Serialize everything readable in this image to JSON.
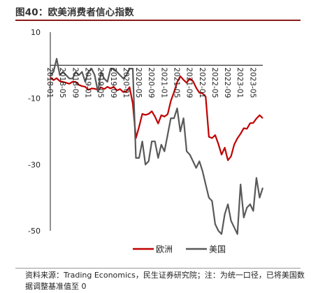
{
  "header": {
    "title": "图40：欧美消费者信心指数"
  },
  "footer": {
    "source": "资料来源：Trading Economics，民生证券研究院；注：为统一口径，已将美国数据调整基准值至 0"
  },
  "chart_data": {
    "type": "line",
    "title": "图40：欧美消费者信心指数",
    "xlabel": "",
    "ylabel": "",
    "ylim": [
      -50,
      10
    ],
    "yticks": [
      10,
      -10,
      -30,
      -50
    ],
    "xlim": [
      "2018-01",
      "2023-08"
    ],
    "xticks": [
      "2018-01",
      "2018-05",
      "2018-09",
      "2019-01",
      "2019-05",
      "2019-09",
      "2020-01",
      "2020-05",
      "2020-09",
      "2021-01",
      "2021-05",
      "2021-09",
      "2022-01",
      "2022-05",
      "2022-09",
      "2023-01",
      "2023-05"
    ],
    "grid": false,
    "legend": "bottom",
    "series": [
      {
        "name": "欧洲",
        "color": "#c00000",
        "x": [
          "2018-01",
          "2018-02",
          "2018-03",
          "2018-04",
          "2018-05",
          "2018-06",
          "2018-07",
          "2018-08",
          "2018-09",
          "2018-10",
          "2018-11",
          "2018-12",
          "2019-01",
          "2019-02",
          "2019-03",
          "2019-04",
          "2019-05",
          "2019-06",
          "2019-07",
          "2019-08",
          "2019-09",
          "2019-10",
          "2019-11",
          "2019-12",
          "2020-01",
          "2020-02",
          "2020-03",
          "2020-04",
          "2020-05",
          "2020-06",
          "2020-07",
          "2020-08",
          "2020-09",
          "2020-10",
          "2020-11",
          "2020-12",
          "2021-01",
          "2021-02",
          "2021-03",
          "2021-04",
          "2021-05",
          "2021-06",
          "2021-07",
          "2021-08",
          "2021-09",
          "2021-10",
          "2021-11",
          "2021-12",
          "2022-01",
          "2022-02",
          "2022-03",
          "2022-04",
          "2022-05",
          "2022-06",
          "2022-07",
          "2022-08",
          "2022-09",
          "2022-10",
          "2022-11",
          "2022-12",
          "2023-01",
          "2023-02",
          "2023-03",
          "2023-04",
          "2023-05",
          "2023-06",
          "2023-07",
          "2023-08"
        ],
        "values": [
          -3.6,
          -4.5,
          -3.9,
          -4.8,
          -5.0,
          -5.3,
          -5.6,
          -5.0,
          -5.0,
          -5.9,
          -6.3,
          -6.5,
          -7.4,
          -7.0,
          -7.1,
          -7.4,
          -6.7,
          -7.2,
          -6.5,
          -7.0,
          -6.5,
          -7.6,
          -7.2,
          -8.1,
          -7.9,
          -6.6,
          -11.6,
          -22.0,
          -18.6,
          -14.7,
          -15.0,
          -14.7,
          -13.9,
          -15.5,
          -17.6,
          -15.1,
          -15.5,
          -14.8,
          -10.8,
          -8.1,
          -5.1,
          -3.3,
          -4.4,
          -5.3,
          -4.0,
          -4.8,
          -6.8,
          -8.3,
          -8.5,
          -9.5,
          -21.6,
          -22.0,
          -21.1,
          -23.8,
          -27.0,
          -24.9,
          -28.7,
          -27.5,
          -23.9,
          -22.1,
          -20.7,
          -19.0,
          -19.2,
          -17.5,
          -17.4,
          -16.1,
          -15.1,
          -16.0
        ]
      },
      {
        "name": "美国",
        "color": "#595959",
        "x": [
          "2018-01",
          "2018-02",
          "2018-03",
          "2018-04",
          "2018-05",
          "2018-06",
          "2018-07",
          "2018-08",
          "2018-09",
          "2018-10",
          "2018-11",
          "2018-12",
          "2019-01",
          "2019-02",
          "2019-03",
          "2019-04",
          "2019-05",
          "2019-06",
          "2019-07",
          "2019-08",
          "2019-09",
          "2019-10",
          "2019-11",
          "2019-12",
          "2020-01",
          "2020-02",
          "2020-03",
          "2020-04",
          "2020-05",
          "2020-06",
          "2020-07",
          "2020-08",
          "2020-09",
          "2020-10",
          "2020-11",
          "2020-12",
          "2021-01",
          "2021-02",
          "2021-03",
          "2021-04",
          "2021-05",
          "2021-06",
          "2021-07",
          "2021-08",
          "2021-09",
          "2021-10",
          "2021-11",
          "2021-12",
          "2022-01",
          "2022-02",
          "2022-03",
          "2022-04",
          "2022-05",
          "2022-06",
          "2022-07",
          "2022-08",
          "2022-09",
          "2022-10",
          "2022-11",
          "2022-12",
          "2023-01",
          "2023-02",
          "2023-03",
          "2023-04",
          "2023-05",
          "2023-06",
          "2023-07",
          "2023-08"
        ],
        "values": [
          -3.0,
          -2.0,
          2.0,
          -3.0,
          -2.0,
          -3.0,
          -4.0,
          -4.0,
          -2.0,
          -3.0,
          -2.0,
          -5.0,
          -2.0,
          -1.0,
          -3.0,
          -8.0,
          -2.0,
          -4.0,
          -5.0,
          -1.0,
          -1.0,
          -2.0,
          -3.0,
          -4.0,
          -3.0,
          -1.0,
          -1.0,
          -28.0,
          -28.0,
          -23.0,
          -30.0,
          -29.0,
          -23.0,
          -23.0,
          -28.0,
          -24.0,
          -26.0,
          -21.0,
          -16.0,
          -16.0,
          -13.0,
          -20.0,
          -16.0,
          -26.0,
          -27.0,
          -29.0,
          -31.0,
          -29.0,
          -32.0,
          -36.0,
          -40.0,
          -41.0,
          -48.0,
          -50.0,
          -51.0,
          -45.0,
          -42.0,
          -47.0,
          -49.0,
          -51.0,
          -36.0,
          -46.0,
          -43.0,
          -42.0,
          -44.0,
          -34.0,
          -40.0,
          -37.0
        ]
      }
    ]
  }
}
